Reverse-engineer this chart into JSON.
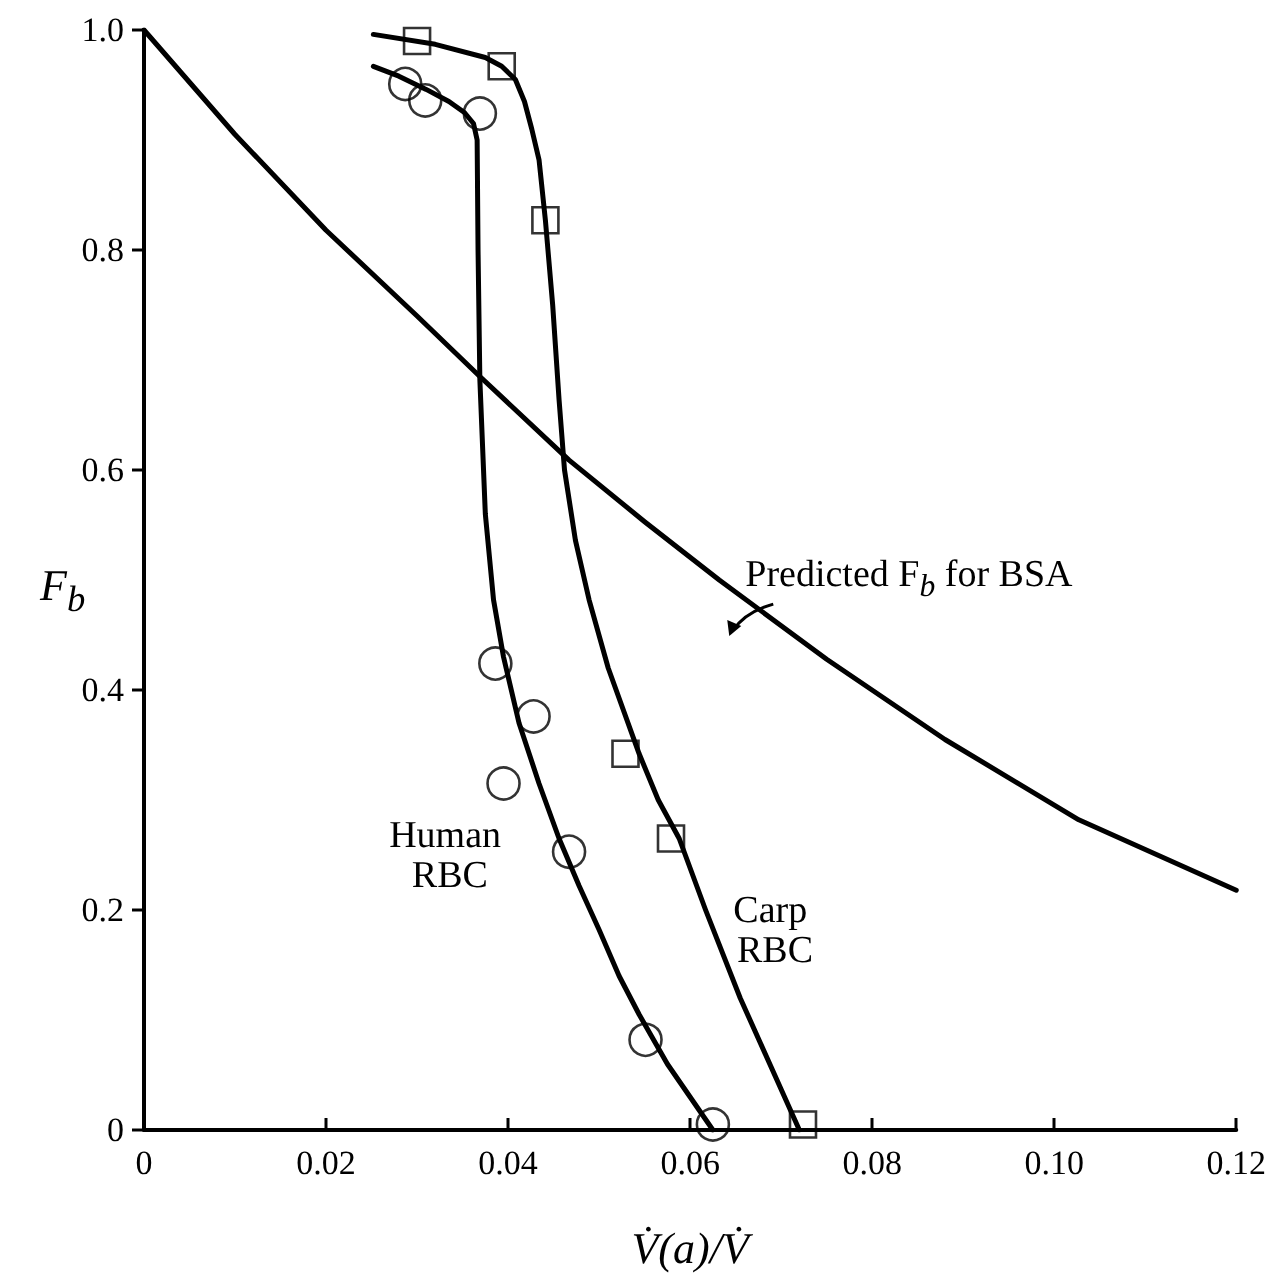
{
  "chart_data": {
    "type": "scatter",
    "xlabel": "V̇(a)/V̇",
    "ylabel": "F$_{b}$",
    "xlim": [
      0,
      0.12
    ],
    "xticks": [
      0,
      0.02,
      0.04,
      0.06,
      0.08,
      {
        "value": 0.1,
        "label": "0.10"
      },
      0.12
    ],
    "ylim": [
      0,
      1.0
    ],
    "yticks": [
      0,
      0.2,
      0.4,
      0.6,
      0.8,
      {
        "value": 1.0,
        "label": "1.0"
      }
    ],
    "grid": false,
    "legend": false,
    "series": [
      {
        "name": "Human RBC",
        "marker": "circle",
        "color": "#000000",
        "x": [
          0.0287,
          0.0309,
          0.0369,
          0.0386,
          0.0428,
          0.0395,
          0.0467,
          0.0551,
          0.0625
        ],
        "values": [
          0.951,
          0.936,
          0.924,
          0.424,
          0.376,
          0.315,
          0.253,
          0.082,
          0.005
        ]
      },
      {
        "type": "line",
        "marker": "none",
        "line_style": "solid",
        "color": "#000000",
        "x": [
          0.0252,
          0.028,
          0.031,
          0.0335,
          0.0352,
          0.0362,
          0.0366,
          0.0367,
          0.0369,
          0.0375,
          0.0384,
          0.0395,
          0.0412,
          0.0434,
          0.0456,
          0.0478,
          0.05,
          0.0522,
          0.0544,
          0.0575,
          0.06,
          0.0625
        ],
        "values": [
          0.967,
          0.958,
          0.946,
          0.935,
          0.925,
          0.915,
          0.9,
          0.8,
          0.682,
          0.56,
          0.482,
          0.43,
          0.37,
          0.315,
          0.265,
          0.222,
          0.182,
          0.14,
          0.105,
          0.06,
          0.03,
          0.0
        ]
      },
      {
        "name": "Carp RBC",
        "marker": "square",
        "color": "#000000",
        "x": [
          0.03,
          0.0393,
          0.0441,
          0.0529,
          0.0579,
          0.0724
        ],
        "values": [
          0.99,
          0.967,
          0.827,
          0.342,
          0.265,
          0.005
        ]
      },
      {
        "type": "line",
        "marker": "none",
        "line_style": "solid",
        "color": "#000000",
        "x": [
          0.0252,
          0.032,
          0.0375,
          0.0393,
          0.0408,
          0.0418,
          0.0426,
          0.0434,
          0.0441,
          0.0449,
          0.0456,
          0.0462,
          0.0474,
          0.0489,
          0.051,
          0.0544,
          0.0565,
          0.0588,
          0.0617,
          0.0655,
          0.072
        ],
        "values": [
          0.996,
          0.987,
          0.975,
          0.967,
          0.955,
          0.935,
          0.91,
          0.882,
          0.827,
          0.75,
          0.664,
          0.6,
          0.536,
          0.482,
          0.42,
          0.342,
          0.3,
          0.265,
          0.2,
          0.12,
          0.0
        ]
      },
      {
        "type": "line",
        "marker": "none",
        "line_style": "solid",
        "color": "#000000",
        "x": [
          0,
          0.01,
          0.02,
          0.03,
          0.0369,
          0.0467,
          0.055,
          0.0632,
          0.075,
          0.088,
          0.1027,
          0.12
        ],
        "values": [
          1.0,
          0.905,
          0.818,
          0.74,
          0.685,
          0.609,
          0.553,
          0.5,
          0.428,
          0.355,
          0.282,
          0.218
        ]
      }
    ],
    "annotations": [
      "Predicted F$_{b}$ for BSA"
    ]
  }
}
